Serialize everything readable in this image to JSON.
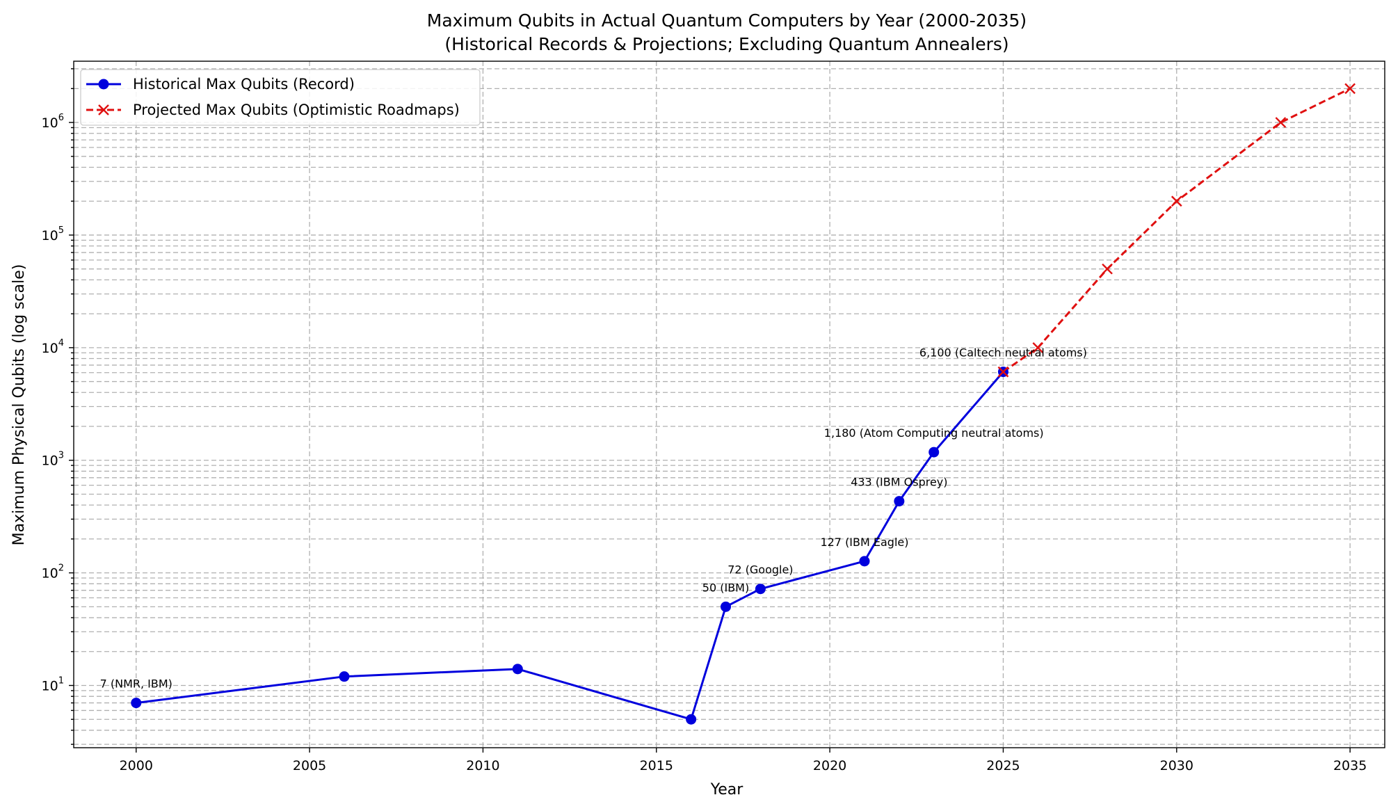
{
  "chart_data": {
    "type": "line",
    "title": "Maximum Qubits in Actual Quantum Computers by Year (2000-2035)",
    "subtitle": "(Historical Records & Projections; Excluding Quantum Annealers)",
    "xlabel": "Year",
    "ylabel": "Maximum Physical Qubits (log scale)",
    "xlim": [
      1998.2,
      2036.0
    ],
    "ylim": [
      2.8,
      3500000
    ],
    "yscale": "log",
    "grid": true,
    "legend_position": "top-left",
    "x_ticks": [
      2000,
      2005,
      2010,
      2015,
      2020,
      2025,
      2030,
      2035
    ],
    "y_ticks": [
      {
        "value": 10,
        "base": "10",
        "exp": "1"
      },
      {
        "value": 100,
        "base": "10",
        "exp": "2"
      },
      {
        "value": 1000,
        "base": "10",
        "exp": "3"
      },
      {
        "value": 10000,
        "base": "10",
        "exp": "4"
      },
      {
        "value": 100000,
        "base": "10",
        "exp": "5"
      },
      {
        "value": 1000000,
        "base": "10",
        "exp": "6"
      }
    ],
    "series": [
      {
        "name": "Historical Max Qubits (Record)",
        "color": "#0000dd",
        "line_style": "solid",
        "marker": "circle",
        "x": [
          2000,
          2006,
          2011,
          2016,
          2017,
          2018,
          2021,
          2022,
          2023,
          2025
        ],
        "y": [
          7,
          12,
          14,
          5,
          50,
          72,
          127,
          433,
          1180,
          6100
        ]
      },
      {
        "name": "Projected Max Qubits (Optimistic Roadmaps)",
        "color": "#e01010",
        "line_style": "dashed",
        "marker": "x",
        "x": [
          2025,
          2026,
          2028,
          2030,
          2033,
          2035
        ],
        "y": [
          6100,
          10000,
          50000,
          200000,
          1000000,
          2000000
        ]
      }
    ],
    "annotations": [
      {
        "text": "7 (NMR, IBM)",
        "x": 2000,
        "y": 7
      },
      {
        "text": "50 (IBM)",
        "x": 2017,
        "y": 50
      },
      {
        "text": "72 (Google)",
        "x": 2018,
        "y": 72
      },
      {
        "text": "127 (IBM Eagle)",
        "x": 2021,
        "y": 127
      },
      {
        "text": "433 (IBM Osprey)",
        "x": 2022,
        "y": 433
      },
      {
        "text": "1,180 (Atom Computing neutral atoms)",
        "x": 2023,
        "y": 1180
      },
      {
        "text": "6,100 (Caltech neutral atoms)",
        "x": 2025,
        "y": 6100
      }
    ]
  }
}
